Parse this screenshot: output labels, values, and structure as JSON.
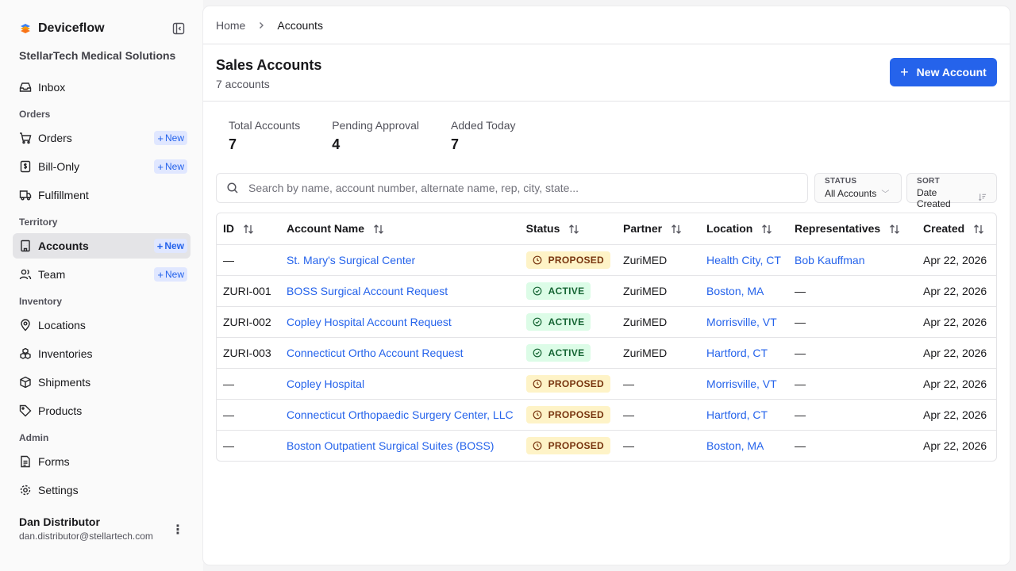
{
  "app": {
    "name": "Deviceflow",
    "org": "StellarTech Medical Solutions"
  },
  "sidebar": {
    "new_label": "New",
    "inbox": "Inbox",
    "sections": {
      "orders": "Orders",
      "territory": "Territory",
      "inventory": "Inventory",
      "admin": "Admin"
    },
    "items": {
      "orders": "Orders",
      "bill_only": "Bill-Only",
      "fulfillment": "Fulfillment",
      "accounts": "Accounts",
      "team": "Team",
      "locations": "Locations",
      "inventories": "Inventories",
      "shipments": "Shipments",
      "products": "Products",
      "forms": "Forms",
      "settings": "Settings"
    },
    "user": {
      "name": "Dan Distributor",
      "email": "dan.distributor@stellartech.com"
    }
  },
  "breadcrumb": {
    "home": "Home",
    "current": "Accounts"
  },
  "header": {
    "title": "Sales Accounts",
    "subtitle": "7 accounts",
    "new_button": "New Account"
  },
  "stats": [
    {
      "label": "Total Accounts",
      "value": "7"
    },
    {
      "label": "Pending Approval",
      "value": "4"
    },
    {
      "label": "Added Today",
      "value": "7"
    }
  ],
  "search": {
    "placeholder": "Search by name, account number, alternate name, rep, city, state..."
  },
  "filters": {
    "status_label": "STATUS",
    "status_value": "All Accounts",
    "sort_label": "SORT",
    "sort_value": "Date Created"
  },
  "table": {
    "columns": [
      "ID",
      "Account Name",
      "Status",
      "Partner",
      "Location",
      "Representatives",
      "Created"
    ],
    "rows": [
      {
        "id": "—",
        "name": "St. Mary's Surgical Center",
        "status": "PROPOSED",
        "partner": "ZuriMED",
        "location": "Health City, CT",
        "reps": "Bob Kauffman",
        "created": "Apr 22, 2026"
      },
      {
        "id": "ZURI-001",
        "name": "BOSS Surgical Account Request",
        "status": "ACTIVE",
        "partner": "ZuriMED",
        "location": "Boston, MA",
        "reps": "—",
        "created": "Apr 22, 2026"
      },
      {
        "id": "ZURI-002",
        "name": "Copley Hospital Account Request",
        "status": "ACTIVE",
        "partner": "ZuriMED",
        "location": "Morrisville, VT",
        "reps": "—",
        "created": "Apr 22, 2026"
      },
      {
        "id": "ZURI-003",
        "name": "Connecticut Ortho Account Request",
        "status": "ACTIVE",
        "partner": "ZuriMED",
        "location": "Hartford, CT",
        "reps": "—",
        "created": "Apr 22, 2026"
      },
      {
        "id": "—",
        "name": "Copley Hospital",
        "status": "PROPOSED",
        "partner": "—",
        "location": "Morrisville, VT",
        "reps": "—",
        "created": "Apr 22, 2026"
      },
      {
        "id": "—",
        "name": "Connecticut Orthopaedic Surgery Center, LLC",
        "status": "PROPOSED",
        "partner": "—",
        "location": "Hartford, CT",
        "reps": "—",
        "created": "Apr 22, 2026"
      },
      {
        "id": "—",
        "name": "Boston Outpatient Surgical Suites (BOSS)",
        "status": "PROPOSED",
        "partner": "—",
        "location": "Boston, MA",
        "reps": "—",
        "created": "Apr 22, 2026"
      }
    ]
  },
  "colors": {
    "accent": "#2563eb",
    "proposed_bg": "#fef3c7",
    "active_bg": "#dcfce7"
  }
}
